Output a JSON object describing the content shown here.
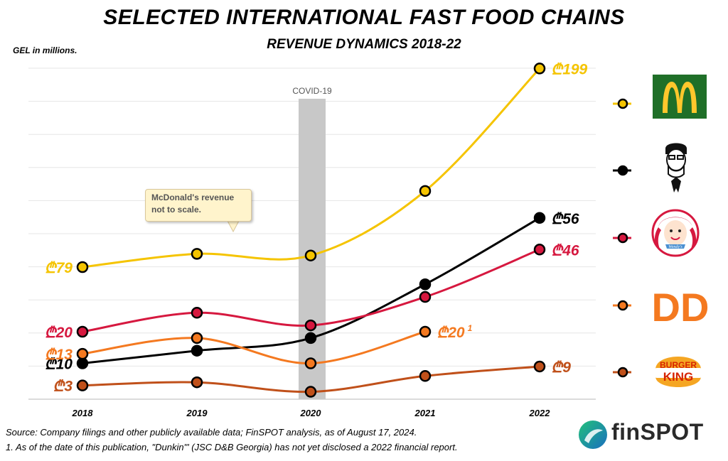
{
  "title": "SELECTED INTERNATIONAL FAST FOOD CHAINS",
  "subtitle": "REVENUE DYNAMICS 2018-22",
  "unit": "GEL in millions.",
  "annotation_band": "COVID-19",
  "callout": "McDonald's revenue not to scale.",
  "source": "Source: Company filings and other publicly available data; FinSPOT analysis, as of August 17, 2024.",
  "footnote": "1. As of the date of this publication, \"Dunkin'\" (JSC D&B Georgia) has not yet disclosed a 2022 financial report.",
  "brand": "finSPOT",
  "logos": {
    "dd_text": "DD",
    "bk_line1": "BURGER",
    "bk_line2": "KING",
    "wendys_text": "Wendy's"
  },
  "colors": {
    "mcdonalds": "#f5c400",
    "kfc": "#000000",
    "wendys": "#d6183f",
    "dunkin": "#f47920",
    "burgerking": "#c0501a",
    "band": "#c8c8c8",
    "grid": "#e6e6e6"
  },
  "chart_data": {
    "type": "line",
    "title": "SELECTED INTERNATIONAL FAST FOOD CHAINS",
    "subtitle": "REVENUE DYNAMICS 2018-22",
    "ylabel": "GEL in millions.",
    "x": [
      "2018",
      "2019",
      "2020",
      "2021",
      "2022"
    ],
    "grid": true,
    "legend": "right",
    "series": [
      {
        "name": "McDonald's",
        "values": [
          79,
          87,
          86,
          125,
          199
        ],
        "labels": [
          "₾79",
          "",
          "",
          "",
          "₾199"
        ],
        "color": "#f5c400"
      },
      {
        "name": "KFC",
        "values": [
          10,
          14,
          18,
          35,
          56
        ],
        "labels": [
          "₾10",
          "",
          "",
          "",
          "₾56"
        ],
        "color": "#000000"
      },
      {
        "name": "Wendy's",
        "values": [
          20,
          26,
          22,
          31,
          46
        ],
        "labels": [
          "₾20",
          "",
          "",
          "",
          "₾46"
        ],
        "color": "#d6183f"
      },
      {
        "name": "Dunkin'",
        "values": [
          13,
          18,
          10,
          20,
          null
        ],
        "labels": [
          "₾13",
          "",
          "",
          "₾20",
          ""
        ],
        "footnote_mark": "1",
        "color": "#f47920"
      },
      {
        "name": "Burger King",
        "values": [
          3,
          4,
          1,
          6,
          9
        ],
        "labels": [
          "₾3",
          "",
          "",
          "",
          "₾9"
        ],
        "color": "#c0501a"
      }
    ]
  }
}
